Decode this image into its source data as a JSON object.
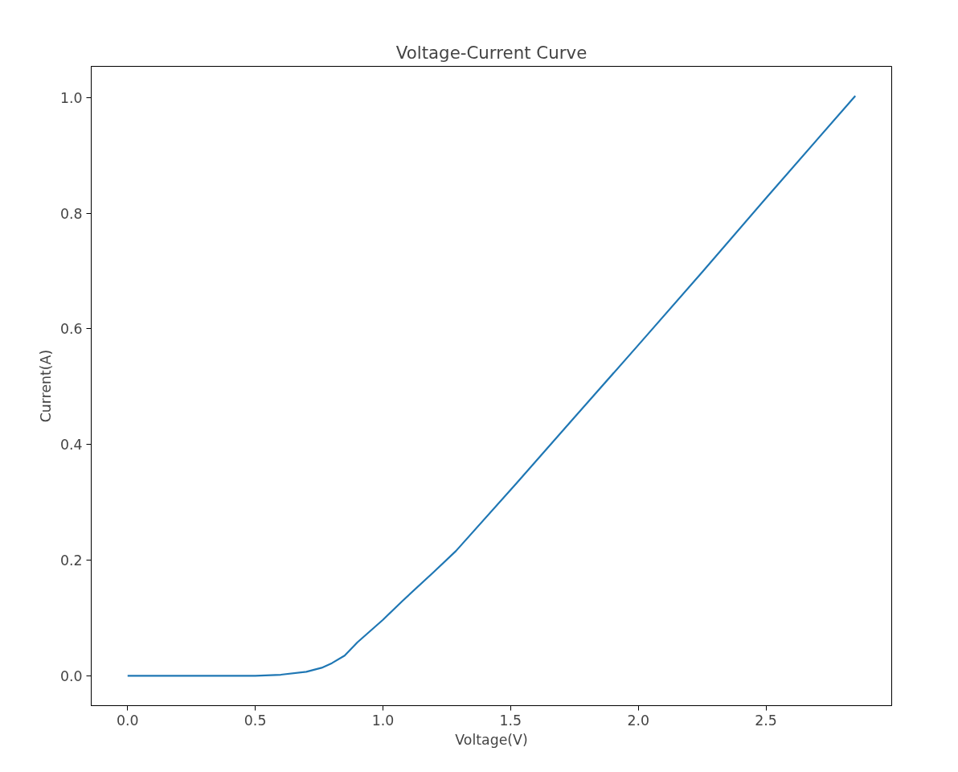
{
  "chart_data": {
    "type": "line",
    "title": "Voltage-Current Curve",
    "xlabel": "Voltage(V)",
    "ylabel": "Current(A)",
    "x": [
      0,
      0.25,
      0.5,
      0.6,
      0.7,
      0.76,
      0.8,
      0.85,
      0.9,
      1.0,
      1.075,
      1.2,
      1.286,
      1.525,
      1.75,
      2.0,
      2.25,
      2.5,
      2.85
    ],
    "series": [
      {
        "color": "#1f77b4",
        "values": [
          0,
          0,
          0,
          0.002,
          0.007,
          0.014,
          0.022,
          0.035,
          0.058,
          0.097,
          0.129,
          0.18,
          0.216,
          0.334,
          0.447,
          0.572,
          0.698,
          0.826,
          1.003
        ]
      }
    ],
    "xlim": [
      -0.1425,
      2.9925
    ],
    "ylim": [
      -0.0515,
      1.054
    ],
    "xticks": [
      {
        "value": 0,
        "label": "0.0"
      },
      0.5,
      {
        "value": 1,
        "label": "1.0"
      },
      1.5,
      {
        "value": 2,
        "label": "2.0"
      },
      2.5
    ],
    "yticks": [
      {
        "value": 0,
        "label": "0.0"
      },
      0.2,
      0.4,
      0.6,
      0.8,
      {
        "value": 1,
        "label": "1.0"
      }
    ],
    "line_style": "solid"
  }
}
